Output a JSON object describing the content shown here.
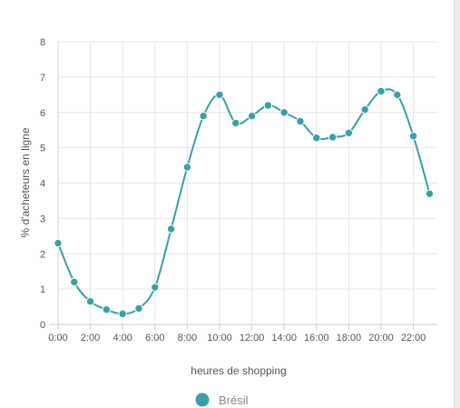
{
  "chart_data": {
    "type": "line",
    "x": [
      "0:00",
      "1:00",
      "2:00",
      "3:00",
      "4:00",
      "5:00",
      "6:00",
      "7:00",
      "8:00",
      "9:00",
      "10:00",
      "11:00",
      "12:00",
      "13:00",
      "14:00",
      "15:00",
      "16:00",
      "17:00",
      "18:00",
      "19:00",
      "20:00",
      "21:00",
      "22:00",
      "23:00"
    ],
    "xtick_labels": [
      "0:00",
      "2:00",
      "4:00",
      "6:00",
      "8:00",
      "10:00",
      "12:00",
      "14:00",
      "16:00",
      "18:00",
      "20:00",
      "22:00"
    ],
    "series": [
      {
        "name": "Brésil",
        "color": "#3a9fa6",
        "values": [
          2.3,
          1.2,
          0.65,
          0.42,
          0.3,
          0.45,
          1.05,
          2.7,
          4.45,
          5.9,
          6.5,
          5.7,
          5.9,
          6.2,
          6.0,
          5.75,
          5.28,
          5.3,
          5.42,
          6.08,
          6.6,
          6.5,
          5.33,
          3.7
        ]
      }
    ],
    "xlabel": "heures de shopping",
    "ylabel": "% d'acheteurs en ligne",
    "ylim": [
      0,
      8
    ],
    "yticks": [
      0,
      1,
      2,
      3,
      4,
      5,
      6,
      7,
      8
    ],
    "grid": true,
    "legend": "bottom-center"
  }
}
